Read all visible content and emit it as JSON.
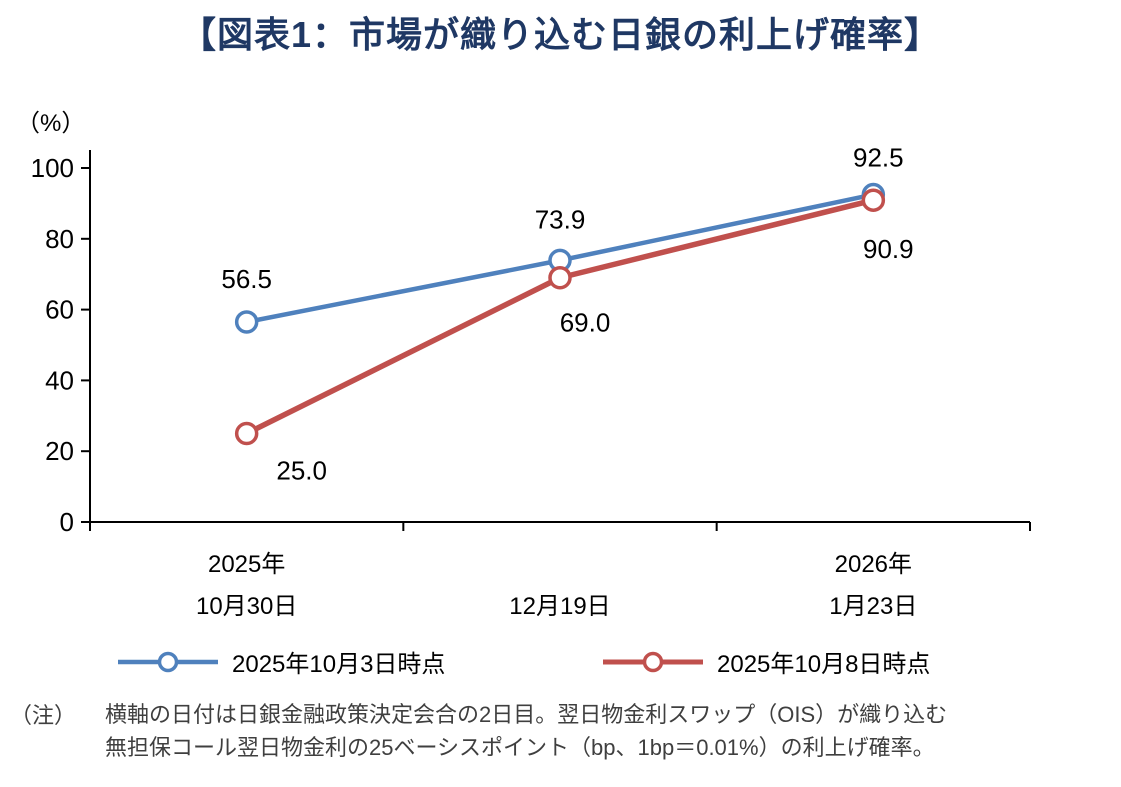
{
  "title": "【図表1：市場が織り込む日銀の利上げ確率】",
  "colors": {
    "title": "#1F3864",
    "axis": "#000000",
    "note_text": "#3F3F3F",
    "series1": "#4F81BD",
    "series2": "#C0504D"
  },
  "chart_data": {
    "type": "line",
    "title": "市場が織り込む日銀の利上げ確率",
    "unit_label": "（%）",
    "ylim": [
      0,
      100
    ],
    "yticks": [
      0,
      20,
      40,
      60,
      80,
      100
    ],
    "grid": false,
    "legend_position": "bottom",
    "categories": [
      {
        "line1": "2025年",
        "line2": "10月30日"
      },
      {
        "line1": "",
        "line2": "12月19日"
      },
      {
        "line1": "2026年",
        "line2": "1月23日"
      }
    ],
    "series": [
      {
        "name": "2025年10月3日時点",
        "color": "#4F81BD",
        "values": [
          56.5,
          73.9,
          92.5
        ]
      },
      {
        "name": "2025年10月8日時点",
        "color": "#C0504D",
        "values": [
          25.0,
          69.0,
          90.9
        ]
      }
    ]
  },
  "note": {
    "label": "（注）",
    "lines": [
      "横軸の日付は日銀金融政策決定会合の2日目。翌日物金利スワップ（OIS）が織り込む",
      "無担保コール翌日物金利の25ベーシスポイント（bp、1bp＝0.01%）の利上げ確率。"
    ]
  }
}
